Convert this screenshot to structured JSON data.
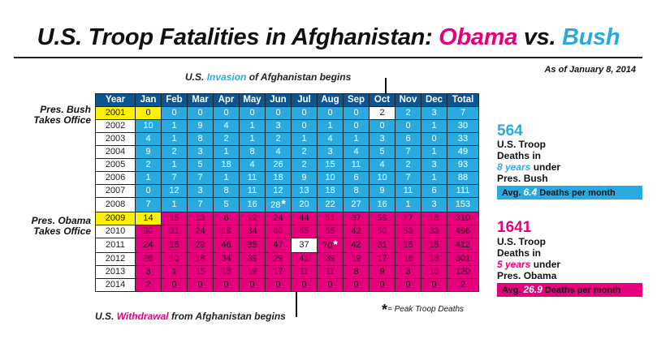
{
  "title": {
    "prefix": "U.S. Troop Fatalities in Afghanistan:",
    "obama": "Obama",
    "vs": "vs.",
    "bush": "Bush"
  },
  "as_of": "As of January 8, 2014",
  "notes": {
    "invasion": {
      "pre": "U.S.",
      "highlight": "Invasion",
      "post": "of Afghanistan begins"
    },
    "withdrawal": {
      "pre": "U.S.",
      "highlight": "Withdrawal",
      "post": "from Afghanistan begins"
    }
  },
  "side_labels": {
    "bush": [
      "Pres. Bush",
      "Takes Office"
    ],
    "obama": [
      "Pres. Obama",
      "Takes Office"
    ]
  },
  "bush_stats": {
    "total": "564",
    "lines": [
      "U.S. Troop",
      "Deaths in"
    ],
    "years": "8 years",
    "years_post": "under",
    "president": "Pres. Bush",
    "avg_pre": "Avg.",
    "avg_value": "6.4",
    "avg_post": "Deaths per month"
  },
  "obama_stats": {
    "total": "1641",
    "lines": [
      "U.S. Troop",
      "Deaths in"
    ],
    "years": "5 years",
    "years_post": "under",
    "president": "Pres. Obama",
    "avg_pre": "Avg.",
    "avg_value": "26.9",
    "avg_post": "Deaths per month"
  },
  "legend": {
    "star": "*",
    "text": "= Peak Troop Deaths"
  },
  "colors": {
    "bush": "#29abe2",
    "obama": "#e6007e",
    "header": "#0d5591",
    "takes_office": "#fff200"
  },
  "chart_data": {
    "type": "table",
    "title": "U.S. Troop Fatalities in Afghanistan: Obama vs. Bush",
    "columns": [
      "Year",
      "Jan",
      "Feb",
      "Mar",
      "Apr",
      "May",
      "Jun",
      "Jul",
      "Aug",
      "Sep",
      "Oct",
      "Nov",
      "Dec",
      "Total"
    ],
    "rows": [
      {
        "year": "2001",
        "admin": "bush",
        "values": [
          0,
          0,
          0,
          0,
          0,
          0,
          0,
          0,
          0,
          2,
          2,
          3
        ],
        "total": 7
      },
      {
        "year": "2002",
        "admin": "bush",
        "values": [
          10,
          1,
          9,
          4,
          1,
          3,
          0,
          1,
          0,
          0,
          0,
          1
        ],
        "total": 30
      },
      {
        "year": "2003",
        "admin": "bush",
        "values": [
          4,
          1,
          8,
          2,
          1,
          2,
          1,
          4,
          1,
          3,
          6,
          0
        ],
        "total": 33
      },
      {
        "year": "2004",
        "admin": "bush",
        "values": [
          9,
          2,
          3,
          1,
          8,
          4,
          2,
          3,
          4,
          5,
          7,
          1
        ],
        "total": 49
      },
      {
        "year": "2005",
        "admin": "bush",
        "values": [
          2,
          1,
          5,
          18,
          4,
          26,
          2,
          15,
          11,
          4,
          2,
          3
        ],
        "total": 93
      },
      {
        "year": "2006",
        "admin": "bush",
        "values": [
          1,
          7,
          7,
          1,
          11,
          18,
          9,
          10,
          6,
          10,
          7,
          1
        ],
        "total": 88
      },
      {
        "year": "2007",
        "admin": "bush",
        "values": [
          0,
          12,
          3,
          8,
          11,
          12,
          13,
          18,
          8,
          9,
          11,
          6
        ],
        "total": 111
      },
      {
        "year": "2008",
        "admin": "bush",
        "values": [
          7,
          1,
          7,
          5,
          16,
          28,
          20,
          22,
          27,
          16,
          1,
          3
        ],
        "total": 153
      },
      {
        "year": "2009",
        "admin": "obama",
        "values": [
          14,
          15,
          13,
          6,
          12,
          24,
          44,
          51,
          37,
          59,
          17,
          18
        ],
        "total": 310
      },
      {
        "year": "2010",
        "admin": "obama",
        "values": [
          30,
          31,
          24,
          19,
          34,
          60,
          65,
          55,
          42,
          50,
          53,
          33
        ],
        "total": 496
      },
      {
        "year": "2011",
        "admin": "obama",
        "values": [
          24,
          18,
          29,
          46,
          35,
          47,
          37,
          70,
          42,
          31,
          18,
          15
        ],
        "total": 412
      },
      {
        "year": "2012",
        "admin": "obama",
        "values": [
          26,
          10,
          18,
          34,
          39,
          29,
          41,
          39,
          19,
          17,
          16,
          13
        ],
        "total": 301
      },
      {
        "year": "2013",
        "admin": "obama",
        "values": [
          3,
          1,
          15,
          13,
          19,
          17,
          11,
          11,
          8,
          9,
          3,
          10
        ],
        "total": 120
      },
      {
        "year": "2014",
        "admin": "obama",
        "values": [
          2,
          0,
          0,
          0,
          0,
          0,
          0,
          0,
          0,
          0,
          0,
          0
        ],
        "total": 2
      }
    ],
    "peaks": [
      {
        "year": "2008",
        "month": "Jun"
      },
      {
        "year": "2011",
        "month": "Aug"
      }
    ],
    "highlights": [
      {
        "year": "2001",
        "month": "Oct",
        "label": "invasion"
      },
      {
        "year": "2011",
        "month": "Jul",
        "label": "withdrawal"
      }
    ],
    "takes_office": [
      {
        "year": "2001",
        "month": "Jan"
      },
      {
        "year": "2009",
        "month": "Jan"
      }
    ]
  }
}
